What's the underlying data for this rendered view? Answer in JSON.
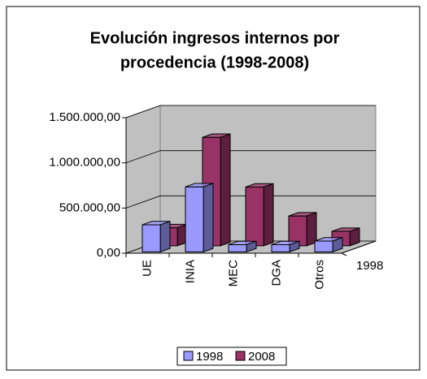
{
  "chart_data": {
    "type": "bar3d",
    "title": [
      "Evolución ingresos internos por",
      "procedencia (1998-2008)"
    ],
    "categories": [
      "UE",
      "INIA",
      "MEC",
      "DGA",
      "Otros"
    ],
    "series": [
      {
        "name": "1998",
        "color": "#9999ff",
        "values": [
          300000,
          720000,
          80000,
          80000,
          120000
        ]
      },
      {
        "name": "2008",
        "color": "#993366",
        "values": [
          200000,
          1200000,
          650000,
          330000,
          160000
        ]
      }
    ],
    "ylim": [
      0,
      1500000
    ],
    "yticks": [
      {
        "value": 0,
        "label": "0,00"
      },
      {
        "value": 500000,
        "label": "500.000,00"
      },
      {
        "value": 1000000,
        "label": "1.000.000,00"
      },
      {
        "value": 1500000,
        "label": "1.500.000,00"
      }
    ],
    "grid": true,
    "legend": "bottom"
  }
}
